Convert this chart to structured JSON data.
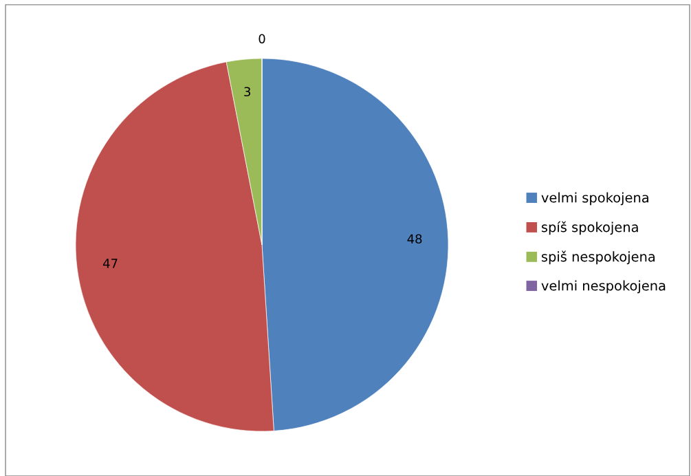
{
  "chart_data": {
    "type": "pie",
    "categories": [
      "velmi spokojena",
      "spíš spokojena",
      "spiš nespokojena",
      "velmi nespokojena"
    ],
    "values": [
      48,
      47,
      3,
      0
    ],
    "colors": [
      "#4f81bd",
      "#c0504d",
      "#9bbb59",
      "#8064a2"
    ],
    "value_labels": [
      "48",
      "47",
      "3",
      "0"
    ],
    "legend": "right"
  }
}
